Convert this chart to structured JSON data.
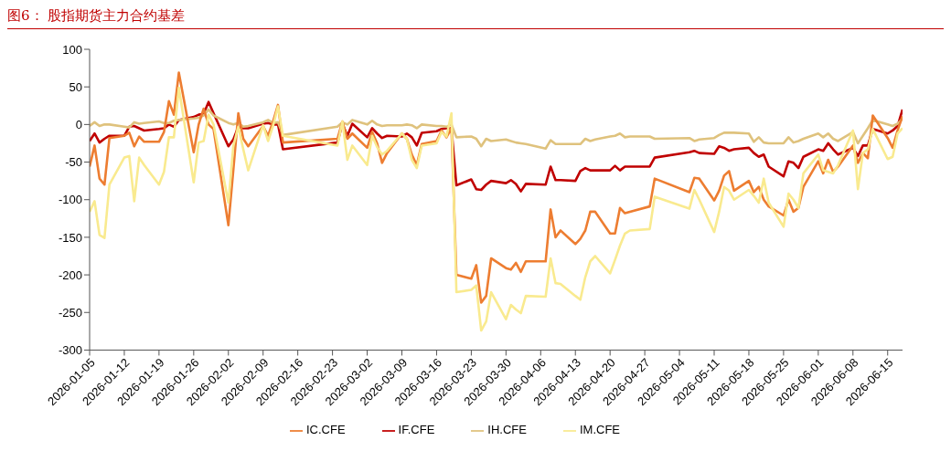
{
  "chart_data": {
    "type": "line",
    "title": "图6：  股指期货主力合约基差",
    "x": [
      "2026-01-05",
      "2026-01-06",
      "2026-01-07",
      "2026-01-08",
      "2026-01-09",
      "2026-01-12",
      "2026-01-13",
      "2026-01-14",
      "2026-01-15",
      "2026-01-16",
      "2026-01-19",
      "2026-01-20",
      "2026-01-21",
      "2026-01-22",
      "2026-01-23",
      "2026-01-26",
      "2026-01-27",
      "2026-01-28",
      "2026-01-29",
      "2026-01-30",
      "2026-02-02",
      "2026-02-03",
      "2026-02-04",
      "2026-02-05",
      "2026-02-06",
      "2026-02-09",
      "2026-02-10",
      "2026-02-11",
      "2026-02-12",
      "2026-02-13",
      "2026-02-24",
      "2026-02-25",
      "2026-02-26",
      "2026-02-27",
      "2026-03-02",
      "2026-03-03",
      "2026-03-04",
      "2026-03-05",
      "2026-03-06",
      "2026-03-09",
      "2026-03-10",
      "2026-03-11",
      "2026-03-12",
      "2026-03-13",
      "2026-03-16",
      "2026-03-17",
      "2026-03-18",
      "2026-03-19",
      "2026-03-20",
      "2026-03-23",
      "2026-03-24",
      "2026-03-25",
      "2026-03-26",
      "2026-03-27",
      "2026-03-30",
      "2026-03-31",
      "2026-04-01",
      "2026-04-02",
      "2026-04-03",
      "2026-04-07",
      "2026-04-08",
      "2026-04-09",
      "2026-04-10",
      "2026-04-13",
      "2026-04-14",
      "2026-04-15",
      "2026-04-16",
      "2026-04-17",
      "2026-04-20",
      "2026-04-21",
      "2026-04-22",
      "2026-04-23",
      "2026-04-24",
      "2026-04-28",
      "2026-04-29",
      "2026-05-06",
      "2026-05-07",
      "2026-05-08",
      "2026-05-11",
      "2026-05-12",
      "2026-05-13",
      "2026-05-14",
      "2026-05-15",
      "2026-05-18",
      "2026-05-19",
      "2026-05-20",
      "2026-05-21",
      "2026-05-22",
      "2026-05-25",
      "2026-05-26",
      "2026-05-27",
      "2026-05-28",
      "2026-05-29",
      "2026-06-01",
      "2026-06-02",
      "2026-06-03",
      "2026-06-04",
      "2026-06-05",
      "2026-06-08",
      "2026-06-09",
      "2026-06-10",
      "2026-06-11",
      "2026-06-12",
      "2026-06-15",
      "2026-06-16",
      "2026-06-17",
      "2026-06-18"
    ],
    "series": [
      {
        "name": "IF.CFE",
        "color": "#c00000",
        "values": [
          -22,
          -12,
          -24,
          -19,
          -15,
          -15,
          -3,
          -2,
          -5,
          -8,
          -6,
          -5,
          0,
          -3,
          6,
          10,
          13,
          14,
          30,
          15,
          -29,
          -20,
          -3,
          -5,
          -5,
          1,
          2,
          0,
          0,
          -33,
          -24,
          1,
          -15,
          1,
          -17,
          -5,
          -12,
          -18,
          -15,
          -16,
          -12,
          -17,
          -28,
          -11,
          -9,
          -6,
          -5,
          -5,
          -81,
          -73,
          -86,
          -87,
          -80,
          -75,
          -78,
          -74,
          -79,
          -89,
          -79,
          -80,
          -56,
          -74,
          -74,
          -75,
          -62,
          -58,
          -61,
          -61,
          -61,
          -55,
          -61,
          -56,
          -56,
          -56,
          -44,
          -37,
          -35,
          -38,
          -39,
          -29,
          -31,
          -35,
          -33,
          -31,
          -38,
          -43,
          -40,
          -56,
          -69,
          -49,
          -51,
          -58,
          -43,
          -33,
          -35,
          -25,
          -33,
          -40,
          -31,
          -42,
          -28,
          -28,
          -6,
          -12,
          -8,
          -2,
          20
        ]
      },
      {
        "name": "IH.CFE",
        "color": "#dfc27d",
        "values": [
          -2,
          3,
          -2,
          0,
          0,
          -3,
          -4,
          3,
          1,
          2,
          4,
          2,
          2,
          5,
          6,
          8,
          9,
          12,
          20,
          12,
          2,
          0,
          2,
          -3,
          -2,
          3,
          6,
          2,
          3,
          -14,
          -3,
          3,
          0,
          6,
          0,
          5,
          0,
          -2,
          -1,
          -1,
          0,
          -1,
          -5,
          0,
          -2,
          -2,
          -3,
          0,
          -17,
          -16,
          -19,
          -29,
          -19,
          -22,
          -20,
          -22,
          -24,
          -25,
          -26,
          -32,
          -21,
          -26,
          -26,
          -26,
          -26,
          -19,
          -22,
          -20,
          -16,
          -15,
          -12,
          -17,
          -16,
          -16,
          -19,
          -18,
          -22,
          -20,
          -18,
          -14,
          -11,
          -11,
          -11,
          -12,
          -23,
          -17,
          -24,
          -25,
          -25,
          -17,
          -24,
          -22,
          -19,
          -12,
          -17,
          -12,
          -19,
          -22,
          -10,
          -25,
          -15,
          -5,
          6,
          0,
          -2,
          1,
          8
        ]
      },
      {
        "name": "IC.CFE",
        "color": "#ed7d31",
        "values": [
          -56,
          -28,
          -72,
          -80,
          -18,
          -15,
          -11,
          -29,
          -16,
          -23,
          -23,
          -10,
          31,
          13,
          69,
          -37,
          0,
          21,
          0,
          -6,
          -134,
          -60,
          15,
          -19,
          -29,
          -2,
          -15,
          4,
          26,
          -24,
          -19,
          4,
          -19,
          -12,
          -31,
          -10,
          -25,
          -51,
          -38,
          -12,
          -19,
          -40,
          -54,
          -26,
          -22,
          -8,
          -17,
          -5,
          -200,
          -205,
          -187,
          -237,
          -228,
          -178,
          -191,
          -193,
          -184,
          -196,
          -182,
          -182,
          -113,
          -150,
          -141,
          -159,
          -152,
          -141,
          -116,
          -116,
          -145,
          -145,
          -111,
          -118,
          -116,
          -109,
          -72,
          -90,
          -71,
          -72,
          -101,
          -88,
          -68,
          -62,
          -88,
          -75,
          -90,
          -83,
          -100,
          -109,
          -121,
          -100,
          -116,
          -111,
          -83,
          -49,
          -65,
          -47,
          -63,
          -56,
          -28,
          -51,
          -38,
          -45,
          12,
          -18,
          -31,
          -8,
          11
        ]
      },
      {
        "name": "IM.CFE",
        "color": "#f9ea8f",
        "values": [
          -116,
          -102,
          -147,
          -151,
          -80,
          -44,
          -42,
          -102,
          -44,
          -54,
          -80,
          -63,
          -17,
          -17,
          49,
          -77,
          -24,
          -22,
          13,
          0,
          -104,
          -28,
          -3,
          -33,
          -61,
          -1,
          -22,
          -2,
          24,
          -15,
          -28,
          4,
          -47,
          -28,
          -54,
          -15,
          -30,
          -40,
          -35,
          -12,
          -19,
          -47,
          -58,
          -28,
          -25,
          -10,
          -16,
          15,
          -223,
          -220,
          -214,
          -274,
          -262,
          -223,
          -259,
          -240,
          -246,
          -251,
          -228,
          -229,
          -178,
          -211,
          -212,
          -228,
          -233,
          -203,
          -182,
          -175,
          -198,
          -180,
          -161,
          -145,
          -141,
          -139,
          -96,
          -112,
          -87,
          -100,
          -143,
          -116,
          -83,
          -88,
          -100,
          -87,
          -95,
          -104,
          -72,
          -104,
          -136,
          -92,
          -100,
          -111,
          -65,
          -40,
          -61,
          -63,
          -65,
          -54,
          -8,
          -86,
          -38,
          -33,
          -6,
          -46,
          -43,
          -12,
          -5
        ]
      }
    ],
    "xlim": [
      "2026-01-05",
      "2026-06-18"
    ],
    "xticks": [
      "2026-01-05",
      "2026-01-12",
      "2026-01-19",
      "2026-01-26",
      "2026-02-02",
      "2026-02-09",
      "2026-02-16",
      "2026-02-23",
      "2026-03-02",
      "2026-03-09",
      "2026-03-16",
      "2026-03-23",
      "2026-03-30",
      "2026-04-06",
      "2026-04-13",
      "2026-04-20",
      "2026-04-27",
      "2026-05-04",
      "2026-05-11",
      "2026-05-18",
      "2026-05-25",
      "2026-06-01",
      "2026-06-08",
      "2026-06-15"
    ],
    "ylim": [
      -300,
      100
    ],
    "yticks": [
      -300,
      -250,
      -200,
      -150,
      -100,
      -50,
      0,
      50,
      100
    ],
    "legend": "bottom"
  }
}
